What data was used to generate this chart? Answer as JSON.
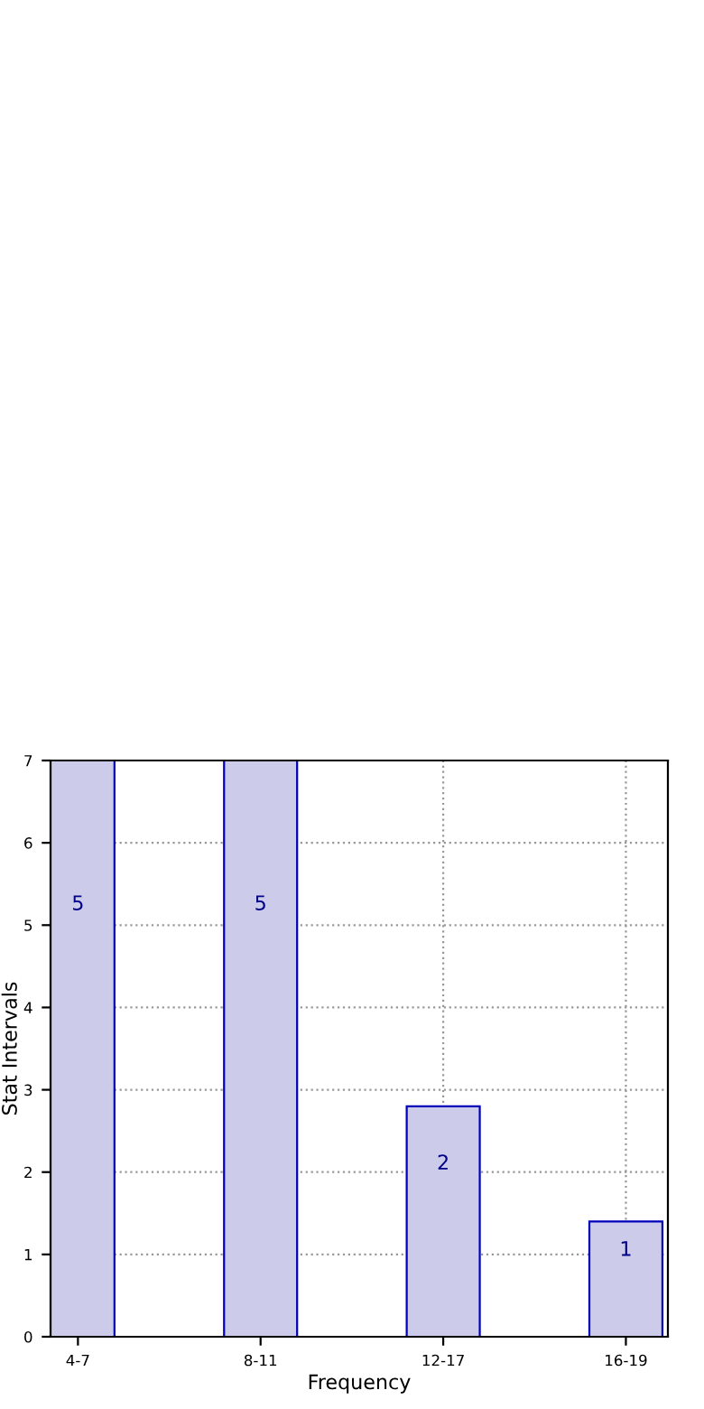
{
  "chart_data": {
    "type": "bar",
    "xlabel": "Frequency",
    "ylabel": "Stat Intervals",
    "categories": [
      "4-7",
      "8-11",
      "12-17",
      "16-19"
    ],
    "values": [
      7,
      7,
      2.8,
      1.4
    ],
    "annotations": [
      "5",
      "5",
      "2",
      "1"
    ],
    "color": "#ccccea",
    "ylim": [
      0,
      7
    ],
    "yticks": [
      0,
      1,
      2,
      3,
      4,
      5,
      6,
      7
    ],
    "grid": true
  }
}
